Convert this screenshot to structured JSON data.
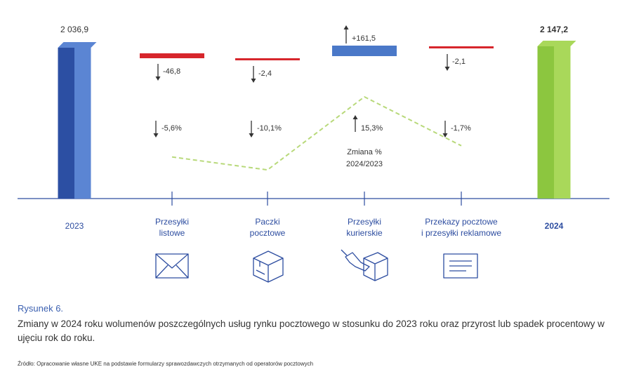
{
  "chart_data": {
    "type": "waterfall",
    "start": {
      "label": "2023",
      "value": 2036.9,
      "display": "2 036,9",
      "color": "#2c4fa3"
    },
    "end": {
      "label": "2024",
      "value": 2147.2,
      "display": "2 147,2",
      "color": "#8cc63f"
    },
    "steps": [
      {
        "category": [
          "Przesyłki",
          "listowe"
        ],
        "change": -46.8,
        "change_label": "-46,8",
        "pct": -5.6,
        "pct_label": "-5,6%",
        "icon": "envelope-icon"
      },
      {
        "category": [
          "Paczki",
          "pocztowe"
        ],
        "change": -2.4,
        "change_label": "-2,4",
        "pct": -10.1,
        "pct_label": "-10,1%",
        "icon": "parcel-box-icon"
      },
      {
        "category": [
          "Przesyłki",
          "kurierskie"
        ],
        "change": 161.5,
        "change_label": "+161,5",
        "pct": 15.3,
        "pct_label": "15,3%",
        "icon": "courier-handover-icon"
      },
      {
        "category": [
          "Przekazy pocztowe",
          "i przesyłki reklamowe"
        ],
        "change": -2.1,
        "change_label": "-2,1",
        "pct": -1.7,
        "pct_label": "-1,7%",
        "icon": "money-order-icon"
      }
    ],
    "pct_annotation": [
      "Zmiana %",
      "2024/2023"
    ],
    "colors": {
      "decrease": "#d7262c",
      "increase": "#4a78c8",
      "pct_line": "#b8d97a",
      "axis": "#2d4da0",
      "text": "#333333"
    }
  },
  "caption": {
    "label": "Rysunek 6.",
    "text": "Zmiany w 2024 roku wolumenów poszczególnych usług rynku pocztowego w stosunku do 2023 roku oraz przyrost lub spadek procentowy w ujęciu rok do roku.",
    "source": "Źródło: Opracowanie własne UKE na podstawie formularzy sprawozdawczych otrzymanych od operatorów pocztowych"
  }
}
